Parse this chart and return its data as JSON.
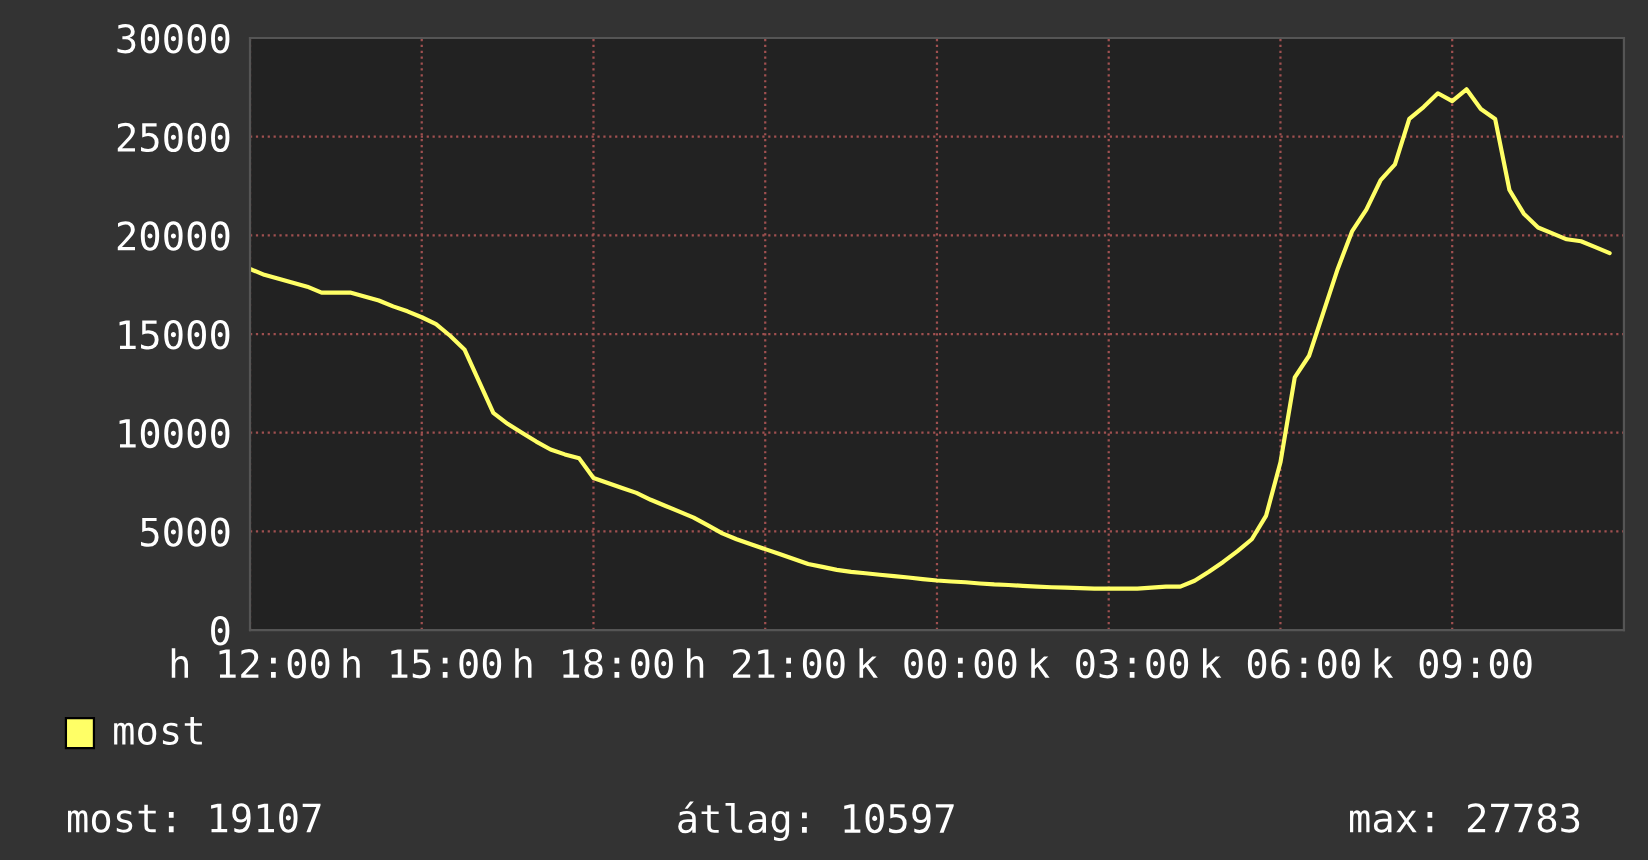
{
  "chart_data": {
    "type": "line",
    "categories": [
      "h 12:00",
      null,
      null,
      null,
      null,
      null,
      null,
      null,
      null,
      null,
      null,
      null,
      "h 15:00",
      null,
      null,
      null,
      null,
      null,
      null,
      null,
      null,
      null,
      null,
      null,
      "h 18:00",
      null,
      null,
      null,
      null,
      null,
      null,
      null,
      null,
      null,
      null,
      null,
      "h 21:00",
      null,
      null,
      null,
      null,
      null,
      null,
      null,
      null,
      null,
      null,
      null,
      "k 00:00",
      null,
      null,
      null,
      null,
      null,
      null,
      null,
      null,
      null,
      null,
      null,
      "k 03:00",
      null,
      null,
      null,
      null,
      null,
      null,
      null,
      null,
      null,
      null,
      null,
      "k 06:00",
      null,
      null,
      null,
      null,
      null,
      null,
      null,
      null,
      null,
      null,
      null,
      "k 09:00",
      null,
      null,
      null,
      null,
      null,
      null,
      null,
      null,
      null,
      null,
      null
    ],
    "series": [
      {
        "name": "most",
        "color": "#ffff66",
        "values": [
          18300,
          18000,
          17800,
          17600,
          17400,
          17100,
          17100,
          17100,
          16900,
          16700,
          16400,
          16150,
          15850,
          15500,
          14900,
          14200,
          12600,
          11000,
          10450,
          10000,
          9550,
          9150,
          8900,
          8700,
          7700,
          7450,
          7200,
          6950,
          6600,
          6300,
          6000,
          5700,
          5300,
          4900,
          4600,
          4350,
          4100,
          3850,
          3600,
          3350,
          3200,
          3050,
          2950,
          2880,
          2800,
          2730,
          2660,
          2580,
          2510,
          2460,
          2420,
          2360,
          2310,
          2280,
          2240,
          2200,
          2170,
          2150,
          2120,
          2100,
          2100,
          2100,
          2100,
          2150,
          2200,
          2200,
          2500,
          2950,
          3450,
          4000,
          4600,
          5800,
          8500,
          12800,
          13900,
          16100,
          18300,
          20200,
          21300,
          22800,
          23600,
          25900,
          26500,
          27200,
          26800,
          27400,
          26400,
          25900,
          22300,
          21100,
          20400,
          20100,
          19800,
          19700,
          19400,
          19100
        ]
      }
    ],
    "ylim": [
      0,
      30000
    ],
    "yticks": [
      0,
      5000,
      10000,
      15000,
      20000,
      25000,
      30000
    ],
    "grid": true,
    "legend": "bottom left",
    "annotations": [
      "most: 19107",
      "átlag: 10597",
      "max: 27783"
    ]
  }
}
